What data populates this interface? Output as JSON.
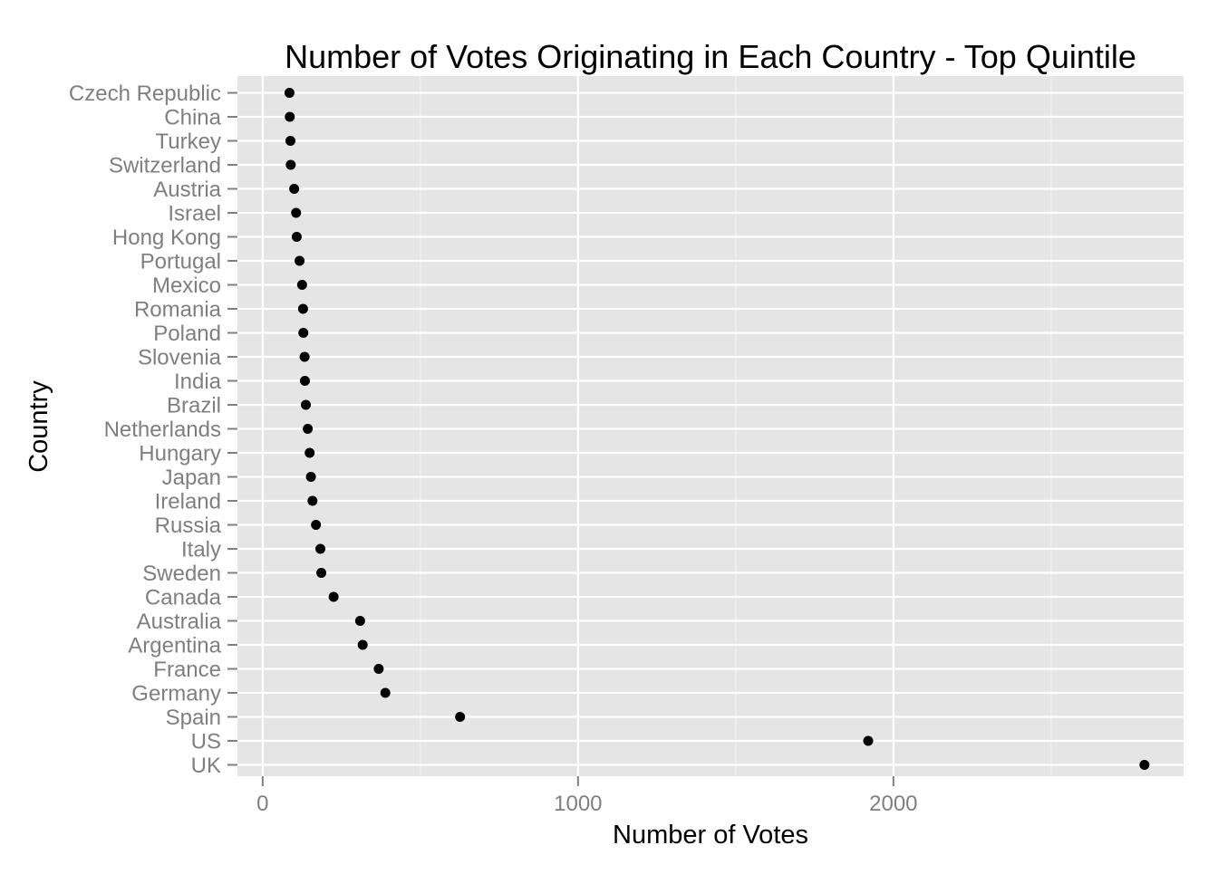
{
  "chart_data": {
    "type": "scatter",
    "title": "Number of Votes Originating in Each Country - Top Quintile",
    "xlabel": "Number of Votes",
    "ylabel": "Country",
    "xlim": [
      -80,
      2920
    ],
    "xticks": [
      0,
      1000,
      2000
    ],
    "xtick_labels": [
      "0",
      "1000",
      "2000"
    ],
    "x_minor_ticks": [
      500,
      1500,
      2500
    ],
    "grid": true,
    "legend": "none",
    "categories": [
      "Czech Republic",
      "China",
      "Turkey",
      "Switzerland",
      "Austria",
      "Israel",
      "Hong Kong",
      "Portugal",
      "Mexico",
      "Romania",
      "Poland",
      "Slovenia",
      "India",
      "Brazil",
      "Netherlands",
      "Hungary",
      "Japan",
      "Ireland",
      "Russia",
      "Italy",
      "Sweden",
      "Canada",
      "Australia",
      "Argentina",
      "France",
      "Germany",
      "Spain",
      "US",
      "UK"
    ],
    "values": [
      85,
      86,
      88,
      89,
      100,
      106,
      108,
      117,
      125,
      128,
      129,
      133,
      134,
      137,
      143,
      149,
      153,
      158,
      169,
      183,
      186,
      225,
      309,
      317,
      368,
      389,
      626,
      1920,
      2796
    ]
  },
  "colors": {
    "panel_background": "#e5e5e5",
    "grid_major": "#ffffff",
    "grid_minor": "#f2f2f2",
    "point": "#000000",
    "tick_text": "#7f7f7f",
    "tick_mark": "#7f7f7f",
    "title_text": "#000000"
  }
}
